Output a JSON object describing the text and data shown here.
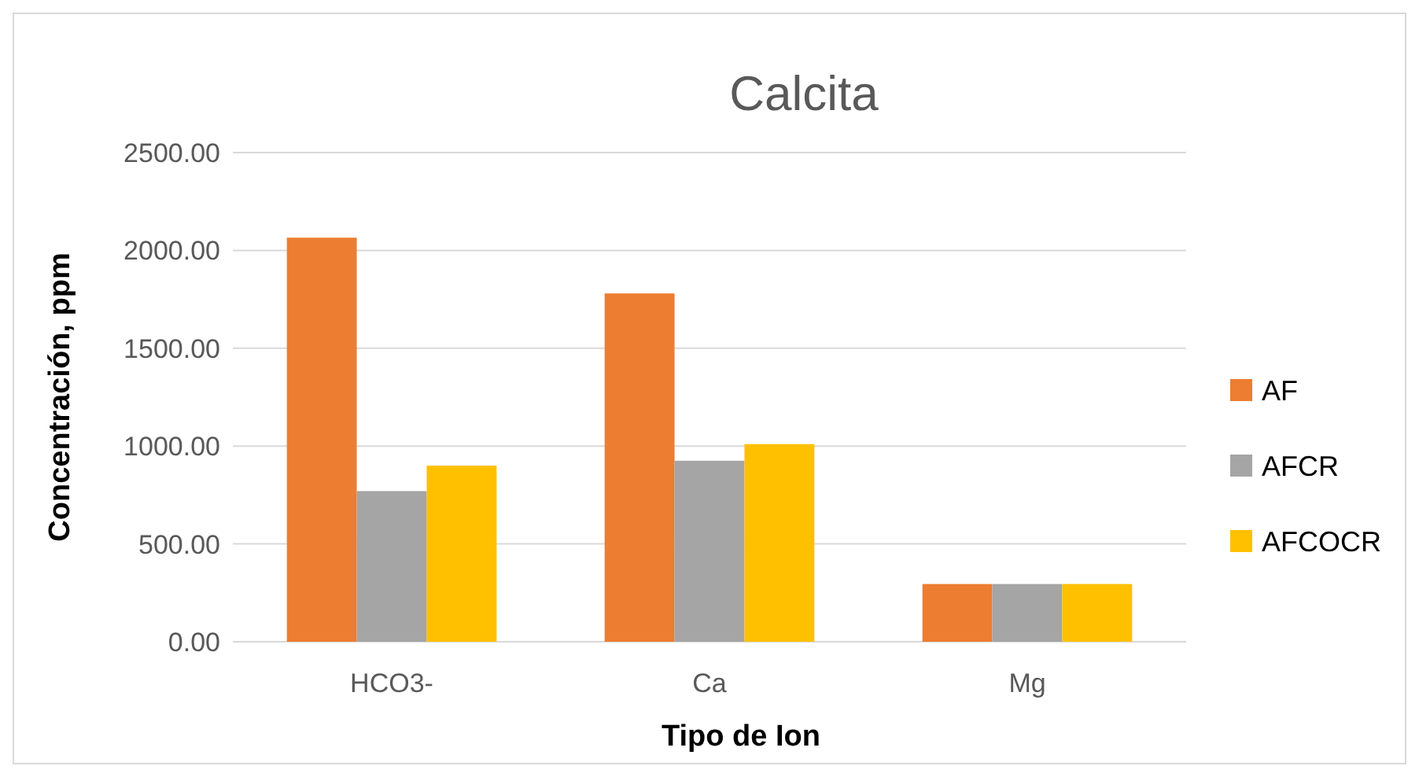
{
  "chart_data": {
    "type": "bar",
    "title": "Calcita",
    "xlabel": "Tipo de Ion",
    "ylabel": "Concentración, ppm",
    "categories": [
      "HCO3-",
      "Ca",
      "Mg"
    ],
    "series": [
      {
        "name": "AF",
        "color": "#ed7d31",
        "values": [
          2065,
          1780,
          295
        ]
      },
      {
        "name": "AFCR",
        "color": "#a5a5a5",
        "values": [
          770,
          925,
          295
        ]
      },
      {
        "name": "AFCOCR",
        "color": "#ffc000",
        "values": [
          900,
          1010,
          295
        ]
      }
    ],
    "ylim": [
      0,
      2500
    ],
    "yticks": [
      {
        "value": 0,
        "label": "0.00"
      },
      {
        "value": 500,
        "label": "500.00"
      },
      {
        "value": 1000,
        "label": "1000.00"
      },
      {
        "value": 1500,
        "label": "1500.00"
      },
      {
        "value": 2000,
        "label": "2000.00"
      },
      {
        "value": 2500,
        "label": "2500.00"
      }
    ],
    "grid": "y",
    "legend": "right"
  }
}
